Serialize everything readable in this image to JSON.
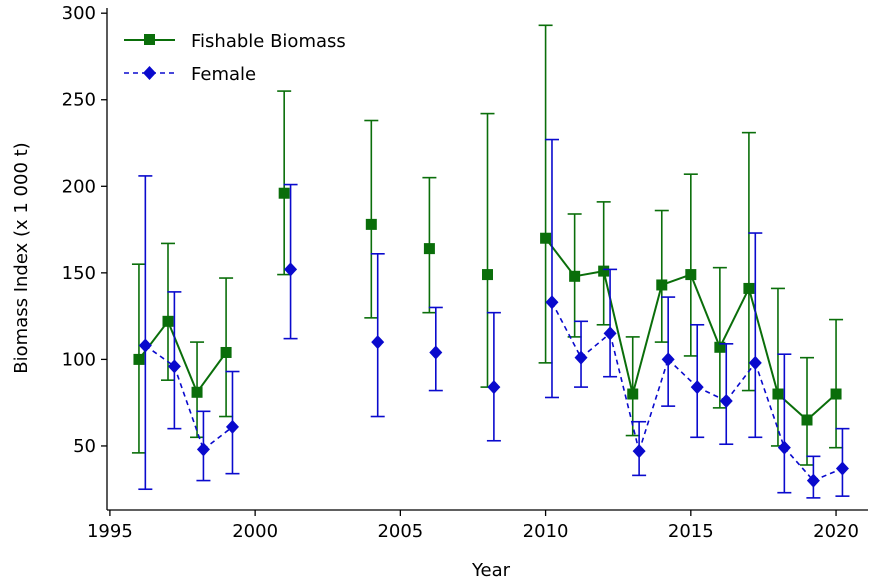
{
  "chart_data": {
    "type": "line",
    "title": "",
    "xlabel": "Year",
    "ylabel": "Biomass Index (x 1 000 t)",
    "xlim": [
      1994.9,
      2021.1
    ],
    "ylim": [
      13,
      303
    ],
    "xticks": [
      1995,
      2000,
      2005,
      2010,
      2015,
      2020
    ],
    "yticks": [
      50,
      100,
      150,
      200,
      250,
      300
    ],
    "grid": false,
    "legend_position": "top-left",
    "series": [
      {
        "name": "Fishable Biomass",
        "color": "#0a6e0a",
        "marker": "square",
        "linestyle": "solid",
        "offset_years": 0,
        "x": [
          1996,
          1997,
          1998,
          1999,
          2001,
          2004,
          2006,
          2008,
          2010,
          2011,
          2012,
          2013,
          2014,
          2015,
          2016,
          2017,
          2018,
          2019,
          2020
        ],
        "y": [
          100,
          122,
          81,
          104,
          196,
          178,
          164,
          149,
          170,
          148,
          151,
          80,
          143,
          149,
          107,
          141,
          80,
          65,
          80
        ],
        "err_low": [
          46,
          88,
          55,
          67,
          149,
          124,
          127,
          84,
          98,
          113,
          120,
          56,
          110,
          102,
          72,
          82,
          50,
          39,
          49
        ],
        "err_high": [
          155,
          167,
          110,
          147,
          255,
          238,
          205,
          242,
          293,
          184,
          191,
          113,
          186,
          207,
          153,
          231,
          141,
          101,
          123
        ]
      },
      {
        "name": "Female",
        "color": "#0a0acd",
        "marker": "diamond",
        "linestyle": "dashed",
        "offset_years": 0.22,
        "x": [
          1996,
          1997,
          1998,
          1999,
          2001,
          2004,
          2006,
          2008,
          2010,
          2011,
          2012,
          2013,
          2014,
          2015,
          2016,
          2017,
          2018,
          2019,
          2020
        ],
        "y": [
          108,
          96,
          48,
          61,
          152,
          110,
          104,
          84,
          133,
          101,
          115,
          47,
          100,
          84,
          76,
          98,
          49,
          30,
          37
        ],
        "err_low": [
          25,
          60,
          30,
          34,
          112,
          67,
          82,
          53,
          78,
          84,
          90,
          33,
          73,
          55,
          51,
          55,
          23,
          20,
          21
        ],
        "err_high": [
          206,
          139,
          70,
          93,
          201,
          161,
          130,
          127,
          227,
          122,
          152,
          64,
          136,
          120,
          109,
          173,
          103,
          44,
          60
        ]
      }
    ],
    "line_breaks_after": [
      1999,
      2001,
      2004,
      2006,
      2008
    ]
  }
}
